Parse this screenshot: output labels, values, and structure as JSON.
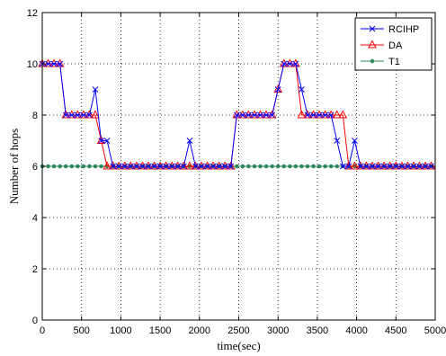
{
  "chart_data": {
    "type": "line",
    "xlabel": "time(sec)",
    "ylabel": "Number of hops",
    "xlim": [
      0,
      5000
    ],
    "ylim": [
      0,
      12
    ],
    "xticks": [
      "0",
      "500",
      "1000",
      "1500",
      "2000",
      "2500",
      "3000",
      "3500",
      "4000",
      "4500",
      "5000"
    ],
    "yticks": [
      "0",
      "2",
      "4",
      "6",
      "8",
      "10",
      "12"
    ],
    "grid": true,
    "legend_position": "top-right",
    "series": [
      {
        "name": "RCIHP",
        "color": "#0000ff",
        "marker": "x",
        "x": [
          0,
          75,
          150,
          225,
          300,
          375,
          450,
          525,
          600,
          675,
          750,
          825,
          900,
          975,
          1050,
          1125,
          1200,
          1275,
          1350,
          1425,
          1500,
          1575,
          1650,
          1725,
          1800,
          1875,
          1950,
          2025,
          2100,
          2175,
          2250,
          2325,
          2400,
          2475,
          2550,
          2625,
          2700,
          2775,
          2850,
          2925,
          3000,
          3075,
          3150,
          3225,
          3300,
          3375,
          3450,
          3525,
          3600,
          3675,
          3750,
          3825,
          3900,
          3975,
          4050,
          4125,
          4200,
          4275,
          4350,
          4425,
          4500,
          4575,
          4650,
          4725,
          4800,
          4875,
          4950
        ],
        "y": [
          10,
          10,
          10,
          10,
          8,
          8,
          8,
          8,
          8,
          9,
          7,
          7,
          6,
          6,
          6,
          6,
          6,
          6,
          6,
          6,
          6,
          6,
          6,
          6,
          6,
          7,
          6,
          6,
          6,
          6,
          6,
          6,
          6,
          8,
          8,
          8,
          8,
          8,
          8,
          8,
          9,
          10,
          10,
          10,
          9,
          8,
          8,
          8,
          8,
          8,
          7,
          6,
          6,
          7,
          6,
          6,
          6,
          6,
          6,
          6,
          6,
          6,
          6,
          6,
          6,
          6,
          6
        ]
      },
      {
        "name": "DA",
        "color": "#ff0000",
        "marker": "triangle",
        "x": [
          0,
          75,
          150,
          225,
          300,
          375,
          450,
          525,
          600,
          675,
          750,
          825,
          900,
          975,
          1050,
          1125,
          1200,
          1275,
          1350,
          1425,
          1500,
          1575,
          1650,
          1725,
          1800,
          1875,
          1950,
          2025,
          2100,
          2175,
          2250,
          2325,
          2400,
          2475,
          2550,
          2625,
          2700,
          2775,
          2850,
          2925,
          3000,
          3075,
          3150,
          3225,
          3300,
          3375,
          3450,
          3525,
          3600,
          3675,
          3750,
          3825,
          3900,
          3975,
          4050,
          4125,
          4200,
          4275,
          4350,
          4425,
          4500,
          4575,
          4650,
          4725,
          4800,
          4875,
          4950
        ],
        "y": [
          10,
          10,
          10,
          10,
          8,
          8,
          8,
          8,
          8,
          8,
          7,
          6,
          6,
          6,
          6,
          6,
          6,
          6,
          6,
          6,
          6,
          6,
          6,
          6,
          6,
          6,
          6,
          6,
          6,
          6,
          6,
          6,
          6,
          8,
          8,
          8,
          8,
          8,
          8,
          8,
          9,
          10,
          10,
          10,
          8,
          8,
          8,
          8,
          8,
          8,
          8,
          8,
          6,
          6,
          6,
          6,
          6,
          6,
          6,
          6,
          6,
          6,
          6,
          6,
          6,
          6,
          6
        ]
      },
      {
        "name": "T1",
        "color": "#2e8b57",
        "marker": "dot",
        "x": [
          0,
          75,
          150,
          225,
          300,
          375,
          450,
          525,
          600,
          675,
          750,
          825,
          900,
          975,
          1050,
          1125,
          1200,
          1275,
          1350,
          1425,
          1500,
          1575,
          1650,
          1725,
          1800,
          1875,
          1950,
          2025,
          2100,
          2175,
          2250,
          2325,
          2400,
          2475,
          2550,
          2625,
          2700,
          2775,
          2850,
          2925,
          3000,
          3075,
          3150,
          3225,
          3300,
          3375,
          3450,
          3525,
          3600,
          3675,
          3750,
          3825,
          3900,
          3975,
          4050,
          4125,
          4200,
          4275,
          4350,
          4425,
          4500,
          4575,
          4650,
          4725,
          4800,
          4875,
          4950
        ],
        "y": [
          6,
          6,
          6,
          6,
          6,
          6,
          6,
          6,
          6,
          6,
          6,
          6,
          6,
          6,
          6,
          6,
          6,
          6,
          6,
          6,
          6,
          6,
          6,
          6,
          6,
          6,
          6,
          6,
          6,
          6,
          6,
          6,
          6,
          6,
          6,
          6,
          6,
          6,
          6,
          6,
          6,
          6,
          6,
          6,
          6,
          6,
          6,
          6,
          6,
          6,
          6,
          6,
          6,
          6,
          6,
          6,
          6,
          6,
          6,
          6,
          6,
          6,
          6,
          6,
          6,
          6,
          6
        ]
      }
    ]
  }
}
